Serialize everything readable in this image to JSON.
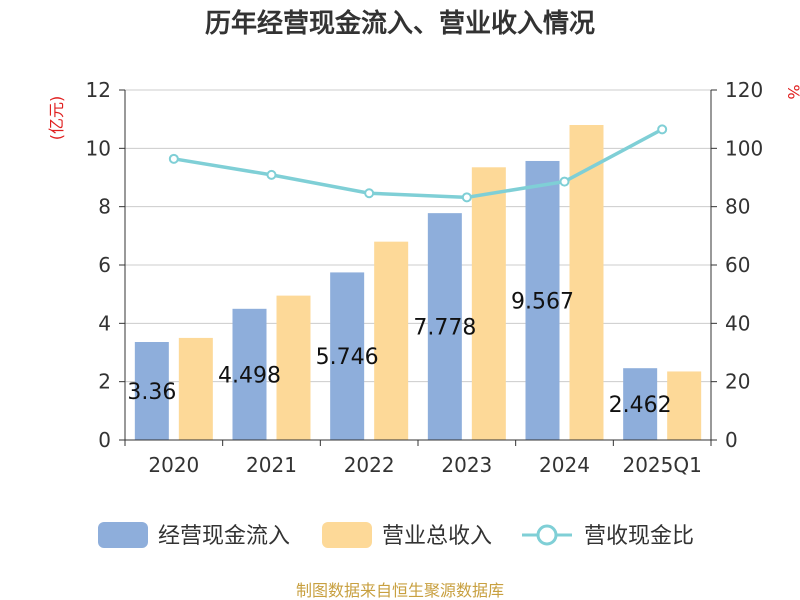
{
  "chart_data": {
    "type": "bar",
    "title": "历年经营现金流入、营业收入情况",
    "categories": [
      "2020",
      "2021",
      "2022",
      "2023",
      "2024",
      "2025Q1"
    ],
    "series": [
      {
        "name": "经营现金流入",
        "kind": "bar",
        "axis": "left",
        "color": "#8eaedb",
        "values": [
          3.36,
          4.498,
          5.746,
          7.778,
          9.567,
          2.462
        ],
        "labels": [
          "3.36",
          "4.498",
          "5.746",
          "7.778",
          "9.567",
          "2.462"
        ]
      },
      {
        "name": "营业总收入",
        "kind": "bar",
        "axis": "left",
        "color": "#fdd998",
        "values": [
          3.5,
          4.95,
          6.8,
          9.35,
          10.8,
          2.35
        ]
      },
      {
        "name": "营收现金比",
        "kind": "line",
        "axis": "right",
        "color": "#7fcfd6",
        "values": [
          96.4,
          90.9,
          84.6,
          83.2,
          88.6,
          106.5
        ]
      }
    ],
    "y_left": {
      "label": "(亿元)",
      "ylim": [
        0,
        12
      ],
      "ticks": [
        "0",
        "2",
        "4",
        "6",
        "8",
        "10",
        "12"
      ]
    },
    "y_right": {
      "label": "%",
      "ylim": [
        0,
        120
      ],
      "ticks": [
        "0",
        "20",
        "40",
        "60",
        "80",
        "100",
        "120"
      ]
    },
    "grid": true,
    "legend_position": "bottom"
  },
  "source": "制图数据来自恒生聚源数据库"
}
